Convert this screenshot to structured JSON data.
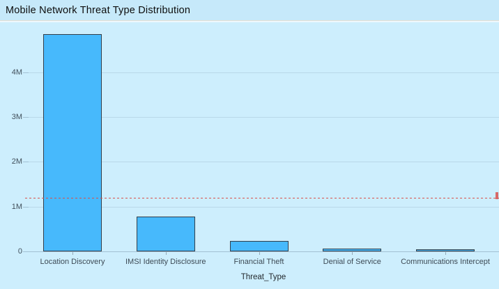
{
  "header": {
    "title": "Mobile Network Threat Type Distribution"
  },
  "chart_data": {
    "type": "bar",
    "title": "Mobile Network Threat Type Distribution",
    "xlabel": "Threat_Type",
    "ylabel": "",
    "categories": [
      "Location Discovery",
      "IMSI Identity Disclosure",
      "Financial Theft",
      "Denial of Service",
      "Communications Intercept"
    ],
    "values_millions": [
      4.85,
      0.77,
      0.24,
      0.06,
      0.05
    ],
    "yticks": [
      {
        "label": "0",
        "value": 0
      },
      {
        "label": "1M",
        "value": 1
      },
      {
        "label": "2M",
        "value": 2
      },
      {
        "label": "3M",
        "value": 3
      },
      {
        "label": "4M",
        "value": 4
      }
    ],
    "ylim": [
      0,
      5.15
    ],
    "grid": true,
    "legend": "none",
    "reference_line": {
      "value_millions": 1.2,
      "style": "dashed",
      "color": "#d9504c",
      "label_clipped_at_right_edge": true
    },
    "colors": {
      "bar_fill": "#47b9fc",
      "bar_stroke": "#333e49",
      "background": "#cdeefd",
      "header_background": "#c6e9fa",
      "gridline": "#b9d8e9",
      "axis_text": "#42505c",
      "title_text": "#0d0d0d",
      "reference": "#d9504c"
    }
  }
}
